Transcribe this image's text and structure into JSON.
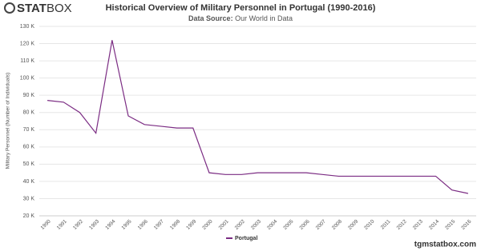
{
  "logo": {
    "bold": "STAT",
    "light": "BOX"
  },
  "footer": "tgmstatbox.com",
  "chart_data": {
    "type": "line",
    "title": "Historical Overview of Military Personnel in Portugal (1990-2016)",
    "subtitle_label": "Data Source:",
    "subtitle": "Our World in Data",
    "y_label": "Military Personnel (Number of Individuals)",
    "categories": [
      "1990",
      "1991",
      "1992",
      "1993",
      "1994",
      "1995",
      "1996",
      "1997",
      "1998",
      "1999",
      "2000",
      "2001",
      "2002",
      "2003",
      "2004",
      "2005",
      "2006",
      "2007",
      "2008",
      "2009",
      "2010",
      "2011",
      "2012",
      "2013",
      "2014",
      "2015",
      "2016"
    ],
    "series": [
      {
        "name": "Portugal",
        "color": "#7b2c83",
        "values": [
          87000,
          86000,
          80000,
          68000,
          122000,
          78000,
          73000,
          72000,
          71000,
          71000,
          45000,
          44000,
          44000,
          45000,
          45000,
          45000,
          45000,
          44000,
          43000,
          43000,
          43000,
          43000,
          43000,
          43000,
          43000,
          35000,
          33000
        ]
      }
    ],
    "ylim": [
      20000,
      130000
    ],
    "yticks": [
      {
        "value": 20000,
        "label": "20 K"
      },
      {
        "value": 30000,
        "label": "30 K"
      },
      {
        "value": 40000,
        "label": "40 K"
      },
      {
        "value": 50000,
        "label": "50 K"
      },
      {
        "value": 60000,
        "label": "60 K"
      },
      {
        "value": 70000,
        "label": "70 K"
      },
      {
        "value": 80000,
        "label": "80 K"
      },
      {
        "value": 90000,
        "label": "90 K"
      },
      {
        "value": 100000,
        "label": "100 K"
      },
      {
        "value": 110000,
        "label": "110 K"
      },
      {
        "value": 120000,
        "label": "120 K"
      },
      {
        "value": 130000,
        "label": "130 K"
      }
    ],
    "grid": true
  }
}
